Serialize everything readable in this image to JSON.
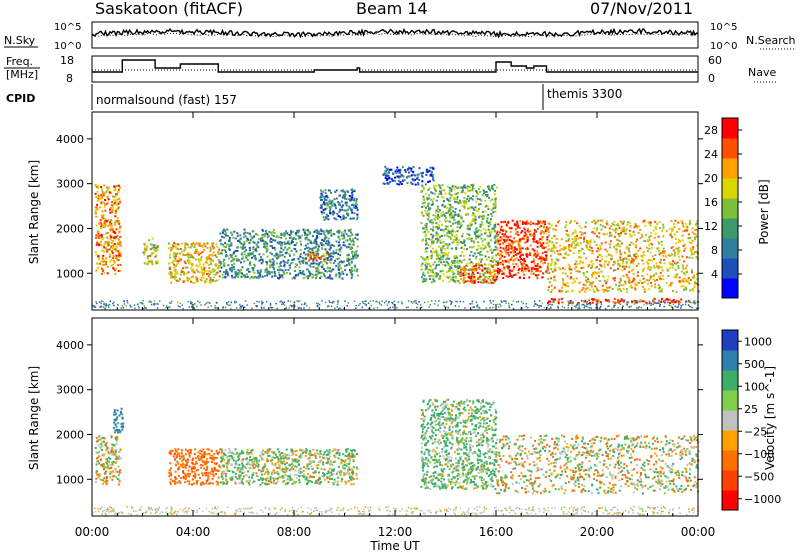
{
  "header": {
    "title": "Saskatoon (fitACF)",
    "beam": "Beam 14",
    "date": "07/Nov/2011"
  },
  "sky_panel": {
    "left_label": "N.Sky",
    "right_label": "N.Search",
    "left_ticks": [
      "10^5",
      "10^0"
    ],
    "right_ticks": [
      "10^5",
      "10^0"
    ]
  },
  "freq_panel": {
    "left_label_line1": "Freq.",
    "left_label_line2": "[MHz]",
    "right_label": "Nave",
    "left_ticks": [
      "18",
      "8"
    ],
    "right_ticks": [
      "60",
      "0"
    ]
  },
  "cpid": {
    "label": "CPID",
    "segments": [
      {
        "name": "normalsound (fast) 157",
        "start_hour": 0
      },
      {
        "name": "themis 3300",
        "start_hour": 18
      }
    ]
  },
  "x_axis": {
    "label": "Time UT",
    "ticks": [
      "00:00",
      "04:00",
      "08:00",
      "12:00",
      "16:00",
      "20:00",
      "00:00"
    ],
    "range_hours": [
      0,
      24
    ]
  },
  "y_axis": {
    "label": "Slant Range [km]",
    "ticks": [
      "1000",
      "2000",
      "3000",
      "4000"
    ],
    "range_km": [
      180,
      4600
    ]
  },
  "chart_data": [
    {
      "type": "heatmap",
      "title": "",
      "xlabel": "",
      "ylabel": "Slant Range [km]",
      "colorbar_label": "Power [dB]",
      "colorbar_ticks": [
        "4",
        "8",
        "12",
        "16",
        "20",
        "24",
        "28"
      ],
      "colorbar_range": [
        0,
        30
      ],
      "colormap": [
        "#0000ff",
        "#1f4fb8",
        "#2f7f9f",
        "#3c9a6a",
        "#7fc03a",
        "#d8d800",
        "#ffa000",
        "#ff5000",
        "#ff0000"
      ],
      "regions": [
        {
          "t0": 0.1,
          "t1": 1.1,
          "r0": 1000,
          "r1": 3000,
          "power": 22
        },
        {
          "t0": 2.0,
          "t1": 2.6,
          "r0": 1200,
          "r1": 1800,
          "power": 18
        },
        {
          "t0": 3.0,
          "t1": 5.0,
          "r0": 800,
          "r1": 1700,
          "power": 20
        },
        {
          "t0": 5.0,
          "t1": 10.5,
          "r0": 900,
          "r1": 2000,
          "power": 10
        },
        {
          "t0": 8.5,
          "t1": 9.3,
          "r0": 1300,
          "r1": 1500,
          "power": 24
        },
        {
          "t0": 9.0,
          "t1": 10.5,
          "r0": 2200,
          "r1": 2900,
          "power": 8
        },
        {
          "t0": 11.5,
          "t1": 13.5,
          "r0": 3000,
          "r1": 3400,
          "power": 6
        },
        {
          "t0": 13.0,
          "t1": 16.0,
          "r0": 800,
          "r1": 3000,
          "power": 14
        },
        {
          "t0": 14.5,
          "t1": 16.0,
          "r0": 800,
          "r1": 1200,
          "power": 26
        },
        {
          "t0": 16.0,
          "t1": 18.0,
          "r0": 900,
          "r1": 2200,
          "power": 26
        },
        {
          "t0": 18.0,
          "t1": 24.0,
          "r0": 600,
          "r1": 2200,
          "power": 20
        },
        {
          "t0": 18.0,
          "t1": 24.0,
          "r0": 350,
          "r1": 450,
          "power": 28
        }
      ]
    },
    {
      "type": "heatmap",
      "title": "",
      "xlabel": "Time UT",
      "ylabel": "Slant Range [km]",
      "colorbar_label": "Velocity [m s^-1]",
      "colorbar_ticks": [
        "1000",
        "500",
        "100",
        "25",
        "−25",
        "−100",
        "−500",
        "−1000"
      ],
      "colormap": [
        "#1f3fbf",
        "#2f7faf",
        "#3cae6a",
        "#7fd04a",
        "#c0c0c0",
        "#ffa000",
        "#ff7000",
        "#ff4000",
        "#ff0000"
      ],
      "regions": [
        {
          "t0": 0.1,
          "t1": 1.1,
          "r0": 900,
          "r1": 2000,
          "velocity": 0
        },
        {
          "t0": 0.8,
          "t1": 1.2,
          "r0": 2000,
          "r1": 2600,
          "velocity": 400
        },
        {
          "t0": 3.0,
          "t1": 5.0,
          "r0": 900,
          "r1": 1700,
          "velocity": -200
        },
        {
          "t0": 5.0,
          "t1": 10.5,
          "r0": 900,
          "r1": 1700,
          "velocity": 60
        },
        {
          "t0": 13.0,
          "t1": 16.0,
          "r0": 800,
          "r1": 2800,
          "velocity": 100
        },
        {
          "t0": 16.0,
          "t1": 24.0,
          "r0": 700,
          "r1": 2000,
          "velocity": 0
        }
      ]
    }
  ]
}
